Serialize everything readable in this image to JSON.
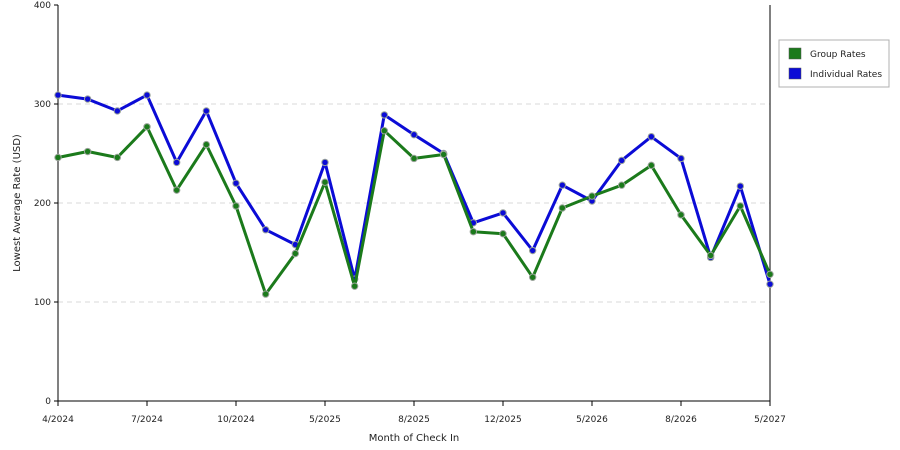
{
  "chart_data": {
    "type": "line",
    "xlabel": "Month of Check In",
    "ylabel": "Lowest Average Rate (USD)",
    "ylim": [
      0,
      400
    ],
    "yticks": [
      0,
      100,
      200,
      300,
      400
    ],
    "grid": "horizontal-dashed",
    "legend_position": "right",
    "x_tick_labels": [
      "4/2024",
      "7/2024",
      "10/2024",
      "5/2025",
      "8/2025",
      "12/2025",
      "5/2026",
      "8/2026",
      "5/2027"
    ],
    "series": [
      {
        "name": "Individual Rates",
        "color": "#0b0bd6",
        "values": [
          309,
          305,
          293,
          309,
          241,
          293,
          220,
          173,
          158,
          241,
          123,
          289,
          269,
          250,
          180,
          190,
          152,
          218,
          202,
          243,
          267,
          245,
          145,
          217,
          118
        ]
      },
      {
        "name": "Group Rates",
        "color": "#1b7a1b",
        "values": [
          246,
          252,
          246,
          277,
          213,
          259,
          197,
          108,
          149,
          221,
          116,
          273,
          245,
          249,
          171,
          169,
          125,
          195,
          207,
          218,
          238,
          188,
          147,
          197,
          128
        ]
      }
    ]
  }
}
